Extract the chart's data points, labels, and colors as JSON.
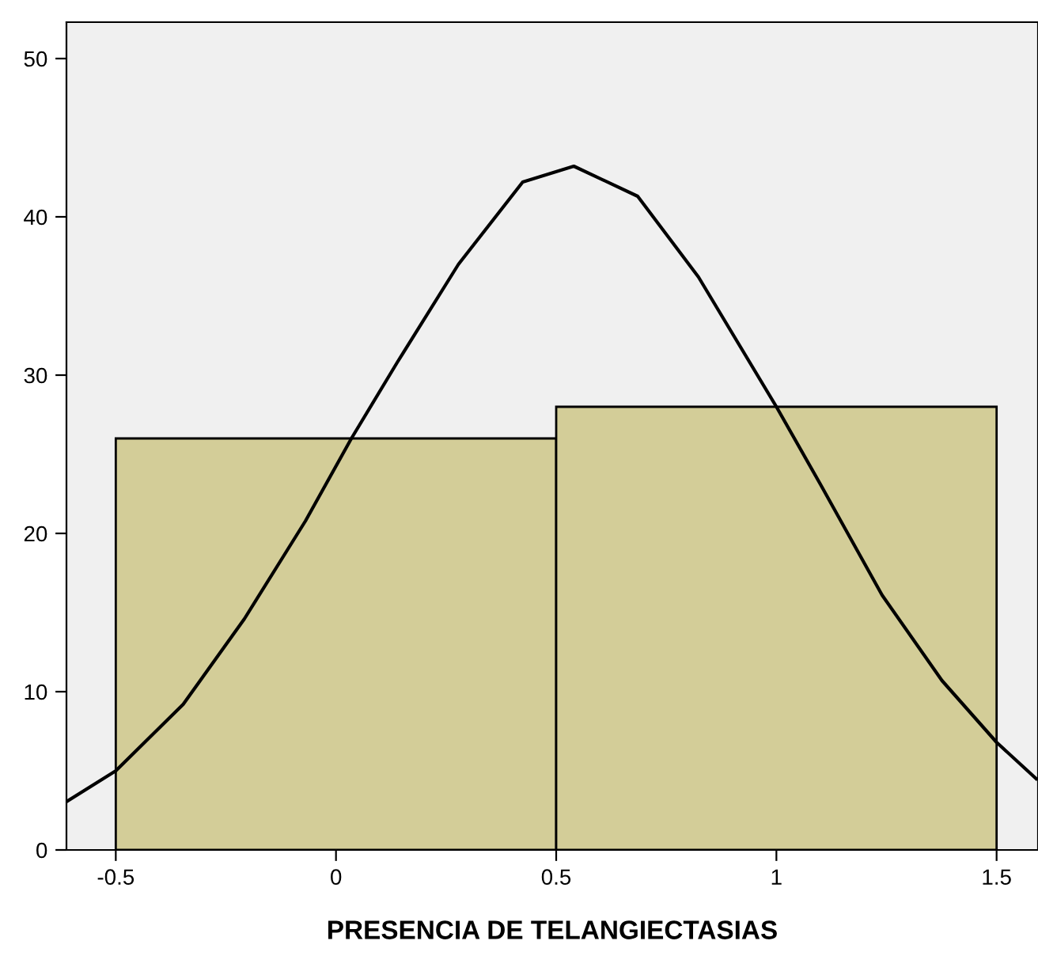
{
  "chart_data": {
    "type": "histogram",
    "xlabel": "PRESENCIA DE TELANGIECTASIAS",
    "bins": [
      -0.5,
      0.5,
      1.5
    ],
    "values": [
      26,
      28
    ],
    "color": "#d3cd98",
    "series": [
      {
        "type": "line",
        "color": "#000000",
        "x": [
          -0.612,
          -0.5,
          -0.347,
          -0.208,
          -0.069,
          0.035,
          0.139,
          0.278,
          0.424,
          0.54,
          0.685,
          0.823,
          1.0,
          1.1,
          1.24,
          1.376,
          1.5,
          1.59
        ],
        "values": [
          3.05,
          5.0,
          9.2,
          14.6,
          20.8,
          26.0,
          30.8,
          37.0,
          42.2,
          43.2,
          41.3,
          36.2,
          28.0,
          23.1,
          16.1,
          10.7,
          6.8,
          4.5
        ]
      }
    ],
    "xlim": [
      -0.612,
      1.594
    ],
    "ylim": [
      0,
      52.3
    ],
    "xticks": [
      -0.5,
      0,
      0.5,
      1,
      1.5
    ],
    "yticks": [
      0,
      10,
      20,
      30,
      40,
      50
    ],
    "grid": false,
    "legend": false
  }
}
